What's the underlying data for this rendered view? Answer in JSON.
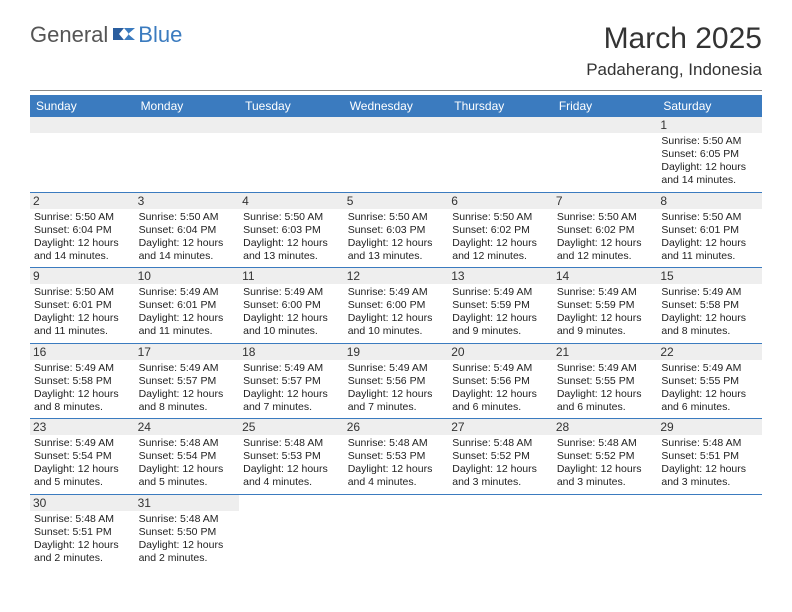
{
  "logo": {
    "general": "General",
    "blue": "Blue"
  },
  "title": "March 2025",
  "location": "Padaherang, Indonesia",
  "colors": {
    "header_bg": "#3b7bbf",
    "header_text": "#ffffff",
    "daynum_bg": "#eeeeee",
    "divider": "#3b7bbf"
  },
  "day_names": [
    "Sunday",
    "Monday",
    "Tuesday",
    "Wednesday",
    "Thursday",
    "Friday",
    "Saturday"
  ],
  "weeks": [
    [
      null,
      null,
      null,
      null,
      null,
      null,
      {
        "n": "1",
        "sr": "Sunrise: 5:50 AM",
        "ss": "Sunset: 6:05 PM",
        "dl": "Daylight: 12 hours and 14 minutes."
      }
    ],
    [
      {
        "n": "2",
        "sr": "Sunrise: 5:50 AM",
        "ss": "Sunset: 6:04 PM",
        "dl": "Daylight: 12 hours and 14 minutes."
      },
      {
        "n": "3",
        "sr": "Sunrise: 5:50 AM",
        "ss": "Sunset: 6:04 PM",
        "dl": "Daylight: 12 hours and 14 minutes."
      },
      {
        "n": "4",
        "sr": "Sunrise: 5:50 AM",
        "ss": "Sunset: 6:03 PM",
        "dl": "Daylight: 12 hours and 13 minutes."
      },
      {
        "n": "5",
        "sr": "Sunrise: 5:50 AM",
        "ss": "Sunset: 6:03 PM",
        "dl": "Daylight: 12 hours and 13 minutes."
      },
      {
        "n": "6",
        "sr": "Sunrise: 5:50 AM",
        "ss": "Sunset: 6:02 PM",
        "dl": "Daylight: 12 hours and 12 minutes."
      },
      {
        "n": "7",
        "sr": "Sunrise: 5:50 AM",
        "ss": "Sunset: 6:02 PM",
        "dl": "Daylight: 12 hours and 12 minutes."
      },
      {
        "n": "8",
        "sr": "Sunrise: 5:50 AM",
        "ss": "Sunset: 6:01 PM",
        "dl": "Daylight: 12 hours and 11 minutes."
      }
    ],
    [
      {
        "n": "9",
        "sr": "Sunrise: 5:50 AM",
        "ss": "Sunset: 6:01 PM",
        "dl": "Daylight: 12 hours and 11 minutes."
      },
      {
        "n": "10",
        "sr": "Sunrise: 5:49 AM",
        "ss": "Sunset: 6:01 PM",
        "dl": "Daylight: 12 hours and 11 minutes."
      },
      {
        "n": "11",
        "sr": "Sunrise: 5:49 AM",
        "ss": "Sunset: 6:00 PM",
        "dl": "Daylight: 12 hours and 10 minutes."
      },
      {
        "n": "12",
        "sr": "Sunrise: 5:49 AM",
        "ss": "Sunset: 6:00 PM",
        "dl": "Daylight: 12 hours and 10 minutes."
      },
      {
        "n": "13",
        "sr": "Sunrise: 5:49 AM",
        "ss": "Sunset: 5:59 PM",
        "dl": "Daylight: 12 hours and 9 minutes."
      },
      {
        "n": "14",
        "sr": "Sunrise: 5:49 AM",
        "ss": "Sunset: 5:59 PM",
        "dl": "Daylight: 12 hours and 9 minutes."
      },
      {
        "n": "15",
        "sr": "Sunrise: 5:49 AM",
        "ss": "Sunset: 5:58 PM",
        "dl": "Daylight: 12 hours and 8 minutes."
      }
    ],
    [
      {
        "n": "16",
        "sr": "Sunrise: 5:49 AM",
        "ss": "Sunset: 5:58 PM",
        "dl": "Daylight: 12 hours and 8 minutes."
      },
      {
        "n": "17",
        "sr": "Sunrise: 5:49 AM",
        "ss": "Sunset: 5:57 PM",
        "dl": "Daylight: 12 hours and 8 minutes."
      },
      {
        "n": "18",
        "sr": "Sunrise: 5:49 AM",
        "ss": "Sunset: 5:57 PM",
        "dl": "Daylight: 12 hours and 7 minutes."
      },
      {
        "n": "19",
        "sr": "Sunrise: 5:49 AM",
        "ss": "Sunset: 5:56 PM",
        "dl": "Daylight: 12 hours and 7 minutes."
      },
      {
        "n": "20",
        "sr": "Sunrise: 5:49 AM",
        "ss": "Sunset: 5:56 PM",
        "dl": "Daylight: 12 hours and 6 minutes."
      },
      {
        "n": "21",
        "sr": "Sunrise: 5:49 AM",
        "ss": "Sunset: 5:55 PM",
        "dl": "Daylight: 12 hours and 6 minutes."
      },
      {
        "n": "22",
        "sr": "Sunrise: 5:49 AM",
        "ss": "Sunset: 5:55 PM",
        "dl": "Daylight: 12 hours and 6 minutes."
      }
    ],
    [
      {
        "n": "23",
        "sr": "Sunrise: 5:49 AM",
        "ss": "Sunset: 5:54 PM",
        "dl": "Daylight: 12 hours and 5 minutes."
      },
      {
        "n": "24",
        "sr": "Sunrise: 5:48 AM",
        "ss": "Sunset: 5:54 PM",
        "dl": "Daylight: 12 hours and 5 minutes."
      },
      {
        "n": "25",
        "sr": "Sunrise: 5:48 AM",
        "ss": "Sunset: 5:53 PM",
        "dl": "Daylight: 12 hours and 4 minutes."
      },
      {
        "n": "26",
        "sr": "Sunrise: 5:48 AM",
        "ss": "Sunset: 5:53 PM",
        "dl": "Daylight: 12 hours and 4 minutes."
      },
      {
        "n": "27",
        "sr": "Sunrise: 5:48 AM",
        "ss": "Sunset: 5:52 PM",
        "dl": "Daylight: 12 hours and 3 minutes."
      },
      {
        "n": "28",
        "sr": "Sunrise: 5:48 AM",
        "ss": "Sunset: 5:52 PM",
        "dl": "Daylight: 12 hours and 3 minutes."
      },
      {
        "n": "29",
        "sr": "Sunrise: 5:48 AM",
        "ss": "Sunset: 5:51 PM",
        "dl": "Daylight: 12 hours and 3 minutes."
      }
    ],
    [
      {
        "n": "30",
        "sr": "Sunrise: 5:48 AM",
        "ss": "Sunset: 5:51 PM",
        "dl": "Daylight: 12 hours and 2 minutes."
      },
      {
        "n": "31",
        "sr": "Sunrise: 5:48 AM",
        "ss": "Sunset: 5:50 PM",
        "dl": "Daylight: 12 hours and 2 minutes."
      },
      null,
      null,
      null,
      null,
      null
    ]
  ]
}
